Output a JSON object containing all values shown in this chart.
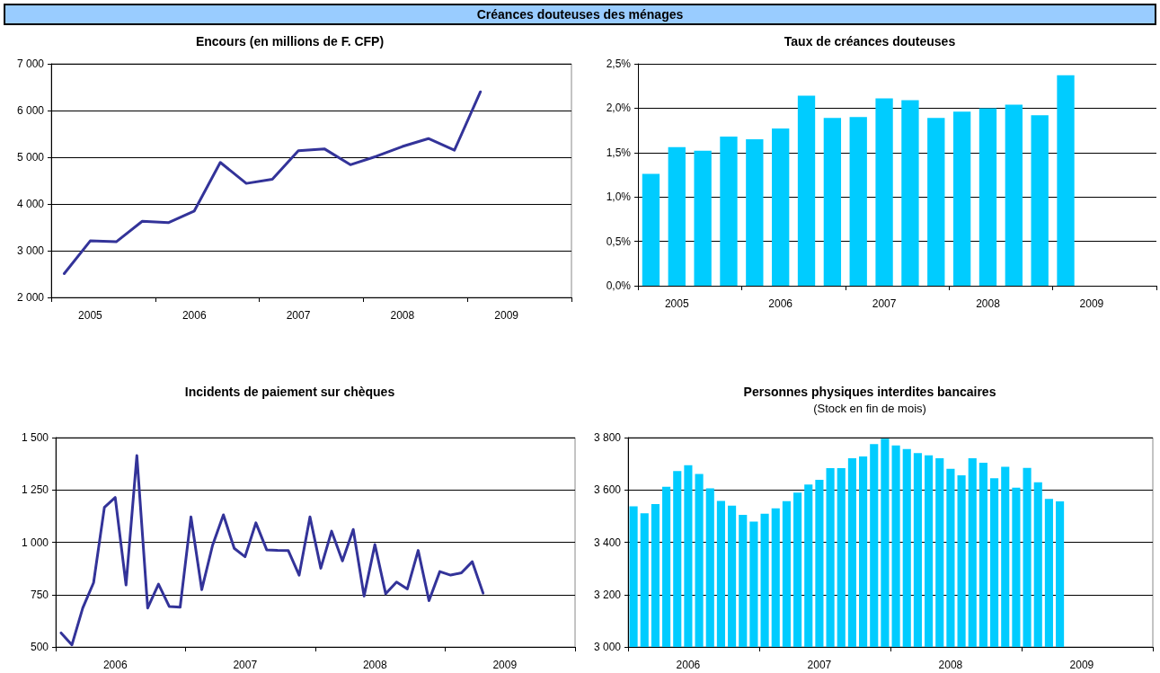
{
  "chart_data": [
    {
      "type": "line",
      "title": "Encours (en millions de F. CFP)",
      "annotations": [
        "Créances douteuses des ménages"
      ],
      "categories": [
        null,
        "2005",
        null,
        null,
        null,
        "2006",
        null,
        null,
        null,
        "2007",
        null,
        null,
        null,
        "2008",
        null,
        null,
        null,
        "2009",
        null,
        null
      ],
      "series": [
        {
          "color": "#333399",
          "values": [
            2510,
            3210,
            3190,
            3630,
            3600,
            3850,
            4890,
            4440,
            4530,
            5140,
            5180,
            4840,
            5020,
            5230,
            5400,
            5150,
            6400,
            null,
            null,
            null
          ]
        }
      ],
      "ylim": [
        2000,
        7000
      ],
      "yticks": [
        {
          "value": 2000,
          "label": "2 000"
        },
        {
          "value": 3000,
          "label": "3 000"
        },
        {
          "value": 4000,
          "label": "4 000"
        },
        {
          "value": 5000,
          "label": "5 000"
        },
        {
          "value": 6000,
          "label": "6 000"
        },
        {
          "value": 7000,
          "label": "7 000"
        }
      ],
      "grid": "y"
    },
    {
      "type": "bar",
      "title": "Taux de créances douteuses",
      "categories": [
        null,
        "2005",
        null,
        null,
        null,
        "2006",
        null,
        null,
        null,
        "2007",
        null,
        null,
        null,
        "2008",
        null,
        null,
        null,
        "2009",
        null,
        null
      ],
      "series": [
        {
          "color": "#00ccff",
          "values": [
            1.26,
            1.56,
            1.52,
            1.68,
            1.65,
            1.77,
            2.14,
            1.89,
            1.9,
            2.11,
            2.09,
            1.89,
            1.96,
            2.0,
            2.04,
            1.92,
            2.37,
            null,
            null,
            null
          ]
        }
      ],
      "ylim": [
        0,
        2.5
      ],
      "yticks": [
        {
          "value": 0,
          "label": "0,0%"
        },
        {
          "value": 0.5,
          "label": "0,5%"
        },
        {
          "value": 1,
          "label": "1,0%"
        },
        {
          "value": 1.5,
          "label": "1,5%"
        },
        {
          "value": 2,
          "label": "2,0%"
        },
        {
          "value": 2.5,
          "label": "2,5%"
        }
      ],
      "grid": "y"
    },
    {
      "type": "line",
      "title": "Incidents de paiement sur chèques",
      "categories": [
        null,
        null,
        null,
        null,
        null,
        "2006",
        null,
        null,
        null,
        null,
        null,
        null,
        null,
        null,
        null,
        null,
        null,
        "2007",
        null,
        null,
        null,
        null,
        null,
        null,
        null,
        null,
        null,
        null,
        null,
        "2008",
        null,
        null,
        null,
        null,
        null,
        null,
        null,
        null,
        null,
        null,
        null,
        "2009",
        null,
        null,
        null,
        null,
        null,
        null
      ],
      "series": [
        {
          "color": "#333399",
          "values": [
            567,
            510,
            686,
            807,
            1167,
            1214,
            796,
            1414,
            686,
            800,
            693,
            690,
            1121,
            774,
            986,
            1131,
            971,
            931,
            1093,
            964,
            961,
            960,
            843,
            1121,
            876,
            1053,
            911,
            1061,
            743,
            989,
            754,
            810,
            777,
            961,
            721,
            860,
            843,
            854,
            907,
            757,
            null,
            null,
            null,
            null,
            null,
            null,
            null,
            null
          ]
        }
      ],
      "ylim": [
        500,
        1500
      ],
      "yticks": [
        500,
        750,
        {
          "value": 1000,
          "label": "1 000"
        },
        {
          "value": 1250,
          "label": "1 250"
        },
        {
          "value": 1500,
          "label": "1 500"
        }
      ],
      "grid": "y"
    },
    {
      "type": "bar",
      "title": "Personnes physiques interdites bancaires",
      "subtitle": "(Stock en fin de mois)",
      "categories": [
        null,
        null,
        null,
        null,
        null,
        "2006",
        null,
        null,
        null,
        null,
        null,
        null,
        null,
        null,
        null,
        null,
        null,
        "2007",
        null,
        null,
        null,
        null,
        null,
        null,
        null,
        null,
        null,
        null,
        null,
        "2008",
        null,
        null,
        null,
        null,
        null,
        null,
        null,
        null,
        null,
        null,
        null,
        "2009",
        null,
        null,
        null,
        null,
        null,
        null
      ],
      "series": [
        {
          "color": "#00ccff",
          "values": [
            3537,
            3511,
            3546,
            3612,
            3672,
            3694,
            3661,
            3606,
            3558,
            3540,
            3505,
            3479,
            3509,
            3530,
            3557,
            3590,
            3621,
            3639,
            3683,
            3683,
            3721,
            3728,
            3775,
            3796,
            3770,
            3756,
            3741,
            3732,
            3721,
            3681,
            3656,
            3721,
            3704,
            3645,
            3688,
            3609,
            3684,
            3629,
            3566,
            3556,
            null,
            null,
            null,
            null,
            null,
            null,
            null,
            null
          ]
        }
      ],
      "ylim": [
        3000,
        3800
      ],
      "yticks": [
        {
          "value": 3000,
          "label": "3 000"
        },
        {
          "value": 3200,
          "label": "3 200"
        },
        {
          "value": 3400,
          "label": "3 400"
        },
        {
          "value": 3600,
          "label": "3 600"
        },
        {
          "value": 3800,
          "label": "3 800"
        }
      ],
      "grid": "y"
    }
  ]
}
